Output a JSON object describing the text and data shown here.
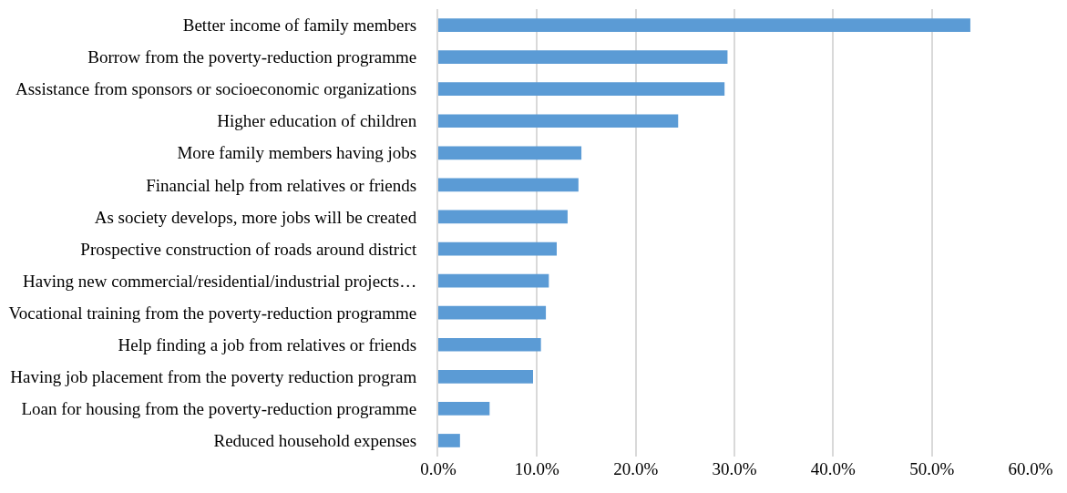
{
  "chart_data": {
    "type": "bar",
    "orientation": "horizontal",
    "categories": [
      "Better income of family members",
      "Borrow from the poverty-reduction programme",
      "Assistance from sponsors or socioeconomic organizations",
      "Higher education of children",
      "More family members having jobs",
      "Financial help from relatives or friends",
      "As society develops, more jobs will be created",
      "Prospective construction of roads around district",
      "Having new commercial/residential/industrial projects…",
      "Vocational training from the poverty-reduction programme",
      "Help finding a job from relatives or friends",
      "Having job placement from the poverty reduction program",
      "Loan for housing from the poverty-reduction programme",
      "Reduced household expenses"
    ],
    "values": [
      53.9,
      29.3,
      29.0,
      24.3,
      14.5,
      14.2,
      13.1,
      12.0,
      11.2,
      10.9,
      10.4,
      9.6,
      5.2,
      2.2
    ],
    "color": "#5b9bd5",
    "xlim": [
      0,
      60
    ],
    "xticks": [
      {
        "value": 0,
        "label": "0.0%"
      },
      {
        "value": 10,
        "label": "10.0%"
      },
      {
        "value": 20,
        "label": "20.0%"
      },
      {
        "value": 30,
        "label": "30.0%"
      },
      {
        "value": 40,
        "label": "40.0%"
      },
      {
        "value": 50,
        "label": "50.0%"
      },
      {
        "value": 60,
        "label": "60.0%"
      }
    ],
    "grid": "x"
  }
}
